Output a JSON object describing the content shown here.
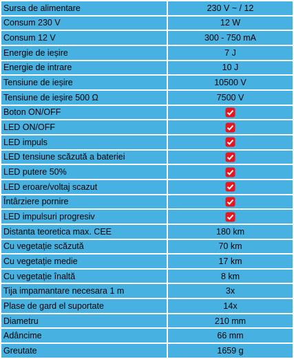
{
  "table": {
    "rows": [
      [
        "Sursa de alimentare",
        "230 V ~ / 12"
      ],
      [
        "Consum 230 V",
        "12 W"
      ],
      [
        "Consum 12 V",
        "300 - 750 mA"
      ],
      [
        "Energie de ieșire",
        "7 J"
      ],
      [
        "Energie de intrare",
        "10 J"
      ],
      [
        "Tensiune de ieșire",
        "10500 V"
      ],
      [
        "Tensiune de ieșire 500 Ω",
        "7500 V"
      ],
      [
        "Boton ON/OFF",
        true
      ],
      [
        "LED ON/OFF",
        true
      ],
      [
        "LED impuls",
        true
      ],
      [
        "LED tensiune scăzută a bateriei",
        true
      ],
      [
        "LED putere 50%",
        true
      ],
      [
        "LED eroare/voltaj scazut",
        true
      ],
      [
        "Întârziere pornire",
        true
      ],
      [
        "LED impulsuri progresiv",
        true
      ],
      [
        "Distanta teoretica max. CEE",
        "180 km"
      ],
      [
        "Cu vegetație scăzută",
        "70 km"
      ],
      [
        "Cu vegetație medie",
        "17 km"
      ],
      [
        "Cu vegetație înaltă",
        "8 km"
      ],
      [
        "Tija impamantare necesara 1 m",
        "3x"
      ],
      [
        "Plase de gard el suportate",
        "14x"
      ],
      [
        "Diametru",
        "210 mm"
      ],
      [
        "Adâncime",
        "66 mm"
      ],
      [
        "Greutate",
        "1659 g"
      ]
    ]
  }
}
